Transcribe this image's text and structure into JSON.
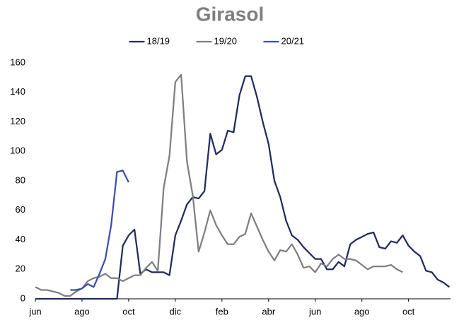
{
  "chart_data": {
    "type": "line",
    "title": "Girasol",
    "categories": [
      "jun",
      null,
      null,
      null,
      null,
      null,
      null,
      null,
      "ago",
      null,
      null,
      null,
      null,
      null,
      null,
      null,
      "oct",
      null,
      null,
      null,
      null,
      null,
      null,
      null,
      "dic",
      null,
      null,
      null,
      null,
      null,
      null,
      null,
      "feb",
      null,
      null,
      null,
      null,
      null,
      null,
      null,
      "abr",
      null,
      null,
      null,
      null,
      null,
      null,
      null,
      "jun",
      null,
      null,
      null,
      null,
      null,
      null,
      null,
      "ago",
      null,
      null,
      null,
      null,
      null,
      null,
      null,
      "oct",
      null,
      null,
      null,
      null,
      null,
      null,
      null
    ],
    "series": [
      {
        "name": "18/19",
        "color": "#222a5e",
        "values": [
          0,
          0,
          0,
          0,
          0,
          0,
          0,
          0,
          0,
          0,
          0,
          0,
          0,
          0,
          0,
          36,
          43,
          47,
          17,
          20,
          18,
          18,
          18,
          16,
          43,
          53,
          64,
          69,
          68,
          73,
          112,
          98,
          101,
          114,
          113,
          138,
          151,
          151,
          137,
          120,
          105,
          80,
          69,
          53,
          43,
          40,
          35,
          31,
          27,
          27,
          20,
          20,
          25,
          22,
          37,
          40,
          42,
          44,
          45,
          35,
          34,
          39,
          38,
          43,
          36,
          32,
          29,
          19,
          18,
          13,
          11,
          8
        ]
      },
      {
        "name": "19/20",
        "color": "#7f7f7f",
        "values": [
          8,
          6,
          6,
          5,
          4,
          2,
          2,
          5,
          7,
          12,
          14,
          15,
          17,
          14,
          14,
          12,
          14,
          16,
          16,
          21,
          25,
          19,
          75,
          97,
          147,
          152,
          93,
          70,
          32,
          45,
          60,
          50,
          43,
          37,
          37,
          42,
          44,
          58,
          49,
          40,
          32,
          26,
          33,
          32,
          37,
          30,
          21,
          22,
          18,
          24,
          22,
          27,
          30,
          27,
          27,
          26,
          23,
          20,
          22,
          22,
          22,
          23,
          20,
          18,
          null,
          null,
          null,
          null,
          null,
          null,
          null,
          null
        ]
      },
      {
        "name": "20/21",
        "color": "#3a4fb0",
        "values": [
          null,
          null,
          null,
          null,
          null,
          null,
          6,
          6,
          7,
          10,
          8,
          17,
          27,
          50,
          86,
          87,
          79,
          null,
          null,
          null,
          null,
          null,
          null,
          null,
          null,
          null,
          null,
          null,
          null,
          null,
          null,
          null,
          null,
          null,
          null,
          null,
          null,
          null,
          null,
          null,
          null,
          null,
          null,
          null,
          null,
          null,
          null,
          null,
          null,
          null,
          null,
          null,
          null,
          null,
          null,
          null,
          null,
          null,
          null,
          null,
          null,
          null,
          null,
          null,
          null,
          null,
          null,
          null,
          null,
          null,
          null,
          null
        ]
      }
    ],
    "ylim": [
      0,
      160
    ],
    "yticks": [
      0,
      20,
      40,
      60,
      80,
      100,
      120,
      140,
      160
    ],
    "grid": false,
    "legend": "top"
  }
}
